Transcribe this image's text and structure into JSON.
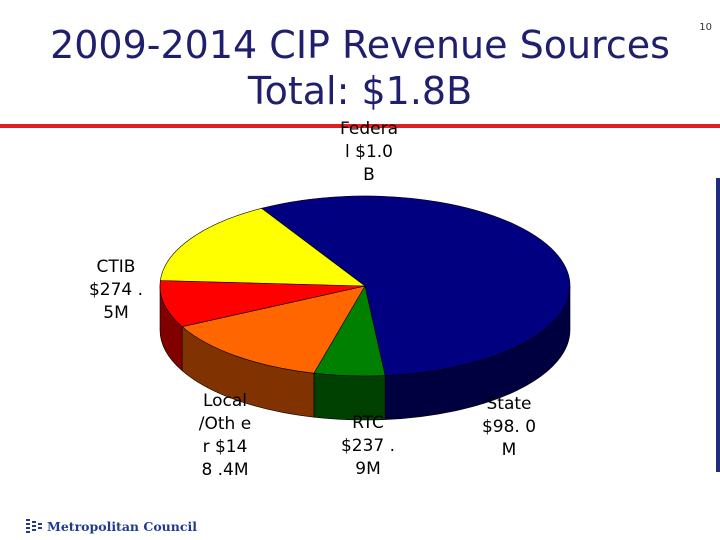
{
  "page_number": "10",
  "title_line1": "2009-2014 CIP Revenue Sources",
  "title_line2": "Total: $1.8B",
  "logo_text": "Metropolitan Council",
  "chart_data": {
    "type": "pie",
    "title": "2009-2014 CIP Revenue Sources Total: $1.8B",
    "total_label": "$1.8B",
    "units": "USD",
    "slices": [
      {
        "name": "Federal",
        "label": "Federal $1.0 B",
        "value": 1000.0,
        "color": "#000080"
      },
      {
        "name": "State",
        "label": "State $98. 0M",
        "value": 98.0,
        "color": "#008000"
      },
      {
        "name": "RTC",
        "label": "RTC $237 .9M",
        "value": 237.9,
        "color": "#ff6600"
      },
      {
        "name": "Local/Other",
        "label": "Local /Oth er $148 .4M",
        "value": 148.4,
        "color": "#ff0000"
      },
      {
        "name": "CTIB",
        "label": "CTIB $274 .5M",
        "value": 274.5,
        "color": "#ffff00"
      }
    ]
  }
}
